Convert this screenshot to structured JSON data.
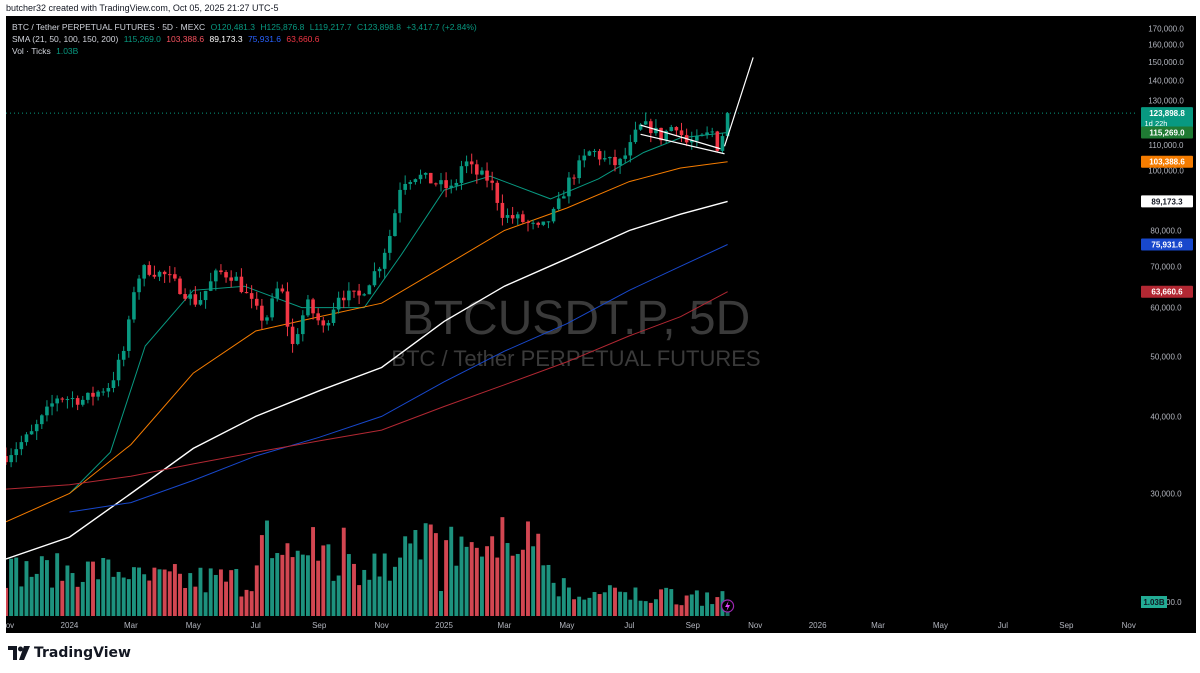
{
  "header": {
    "text": "butcher32 created with TradingView.com, Oct 05, 2025 21:27 UTC-5"
  },
  "legend": {
    "symbol": "BTC / Tether PERPETUAL FUTURES · 5D · MEXC",
    "open": "O120,481.3",
    "high": "H125,876.8",
    "low": "L119,217.7",
    "close": "C123,898.8",
    "change": "+3,417.7 (+2.84%)",
    "sma_label": "SMA (21, 50, 100, 150, 200)",
    "sma_values": [
      "115,269.0",
      "103,388.6",
      "89,173.3",
      "75,931.6",
      "63,660.6"
    ],
    "vol_label": "Vol · Ticks",
    "vol_value": "1.03B"
  },
  "watermark": {
    "symbol": "BTCUSDT.P, 5D",
    "description": "BTC / Tether PERPETUAL FUTURES"
  },
  "footer": {
    "brand": "TradingView",
    "logo_icon": "tradingview-logo-icon"
  },
  "colors": {
    "up": "#089981",
    "down": "#f23645",
    "sma21": "#089981",
    "sma50": "#f57c00",
    "sma100": "#ffffff",
    "sma150": "#1848cc",
    "sma200": "#b22833",
    "volume_up": "#22ab94",
    "volume_down": "#f7525f",
    "volume_last": "#1b7f6e"
  },
  "chart_data": {
    "type": "candlestick",
    "symbol": "BTC / Tether PERPETUAL FUTURES",
    "interval": "5D",
    "exchange": "MEXC",
    "y_scale": "log",
    "ylim": [
      19000,
      178000
    ],
    "y_ticks": [
      170000,
      160000,
      150000,
      140000,
      130000,
      120000,
      110000,
      100000,
      90000,
      80000,
      70000,
      60000,
      50000,
      40000,
      30000,
      20000
    ],
    "y_tick_labels": [
      "170,000.0",
      "160,000.0",
      "150,000.0",
      "140,000.0",
      "130,000.0",
      "120,000.0",
      "110,000.0",
      "100,000.0",
      "90,000.0",
      "80,000.0",
      "70,000.0",
      "60,000.0",
      "50,000.0",
      "40,000.0",
      "30,000.0",
      "20,000.0"
    ],
    "x_start": "2023-10-31",
    "x_end": "2026-11-10",
    "x_ticks": [
      {
        "date": "2023-11-01",
        "label": "Nov"
      },
      {
        "date": "2024-01-01",
        "label": "2024"
      },
      {
        "date": "2024-03-01",
        "label": "Mar"
      },
      {
        "date": "2024-05-01",
        "label": "May"
      },
      {
        "date": "2024-07-01",
        "label": "Jul"
      },
      {
        "date": "2024-09-01",
        "label": "Sep"
      },
      {
        "date": "2024-11-01",
        "label": "Nov"
      },
      {
        "date": "2025-01-01",
        "label": "2025"
      },
      {
        "date": "2025-03-01",
        "label": "Mar"
      },
      {
        "date": "2025-05-01",
        "label": "May"
      },
      {
        "date": "2025-07-01",
        "label": "Jul"
      },
      {
        "date": "2025-09-01",
        "label": "Sep"
      },
      {
        "date": "2025-11-01",
        "label": "Nov"
      },
      {
        "date": "2026-01-01",
        "label": "2026"
      },
      {
        "date": "2026-03-01",
        "label": "Mar"
      },
      {
        "date": "2026-05-01",
        "label": "May"
      },
      {
        "date": "2026-07-01",
        "label": "Jul"
      },
      {
        "date": "2026-09-01",
        "label": "Sep"
      },
      {
        "date": "2026-11-01",
        "label": "Nov"
      }
    ],
    "close_line_value": 123898.8,
    "price_labels": [
      {
        "name": "last-price",
        "value": 123898.8,
        "text": "123,898.8",
        "sub": "1d 22h",
        "bg": "#089981",
        "fg": "#ffffff"
      },
      {
        "name": "sma21",
        "value": 115269.0,
        "text": "115,269.0",
        "bg": "#1f7a33",
        "fg": "#ffffff"
      },
      {
        "name": "sma50",
        "value": 103388.6,
        "text": "103,388.6",
        "bg": "#f57c00",
        "fg": "#ffffff"
      },
      {
        "name": "sma100",
        "value": 89173.3,
        "text": "89,173.3",
        "bg": "#ffffff",
        "fg": "#131722"
      },
      {
        "name": "sma150",
        "value": 75931.6,
        "text": "75,931.6",
        "bg": "#1848cc",
        "fg": "#ffffff"
      },
      {
        "name": "sma200",
        "value": 63660.6,
        "text": "63,660.6",
        "bg": "#b22833",
        "fg": "#ffffff"
      }
    ],
    "volume_label": {
      "text": "1.03B",
      "bg": "#22ab94",
      "fg": "#131722"
    },
    "candle_anchors": [
      [
        "2023-10-31",
        34500
      ],
      [
        "2023-11-25",
        37500
      ],
      [
        "2023-12-20",
        43000
      ],
      [
        "2024-01-15",
        42500
      ],
      [
        "2024-02-10",
        45000
      ],
      [
        "2024-02-25",
        52000
      ],
      [
        "2024-03-05",
        66000
      ],
      [
        "2024-03-15",
        69500
      ],
      [
        "2024-04-05",
        67500
      ],
      [
        "2024-04-25",
        63000
      ],
      [
        "2024-05-05",
        61000
      ],
      [
        "2024-05-25",
        68500
      ],
      [
        "2024-06-10",
        67500
      ],
      [
        "2024-07-01",
        59500
      ],
      [
        "2024-07-10",
        57000
      ],
      [
        "2024-07-25",
        66000
      ],
      [
        "2024-08-05",
        51500
      ],
      [
        "2024-08-20",
        61000
      ],
      [
        "2024-09-05",
        55500
      ],
      [
        "2024-09-20",
        63000
      ],
      [
        "2024-10-10",
        62500
      ],
      [
        "2024-10-30",
        70500
      ],
      [
        "2024-11-10",
        79500
      ],
      [
        "2024-11-20",
        96000
      ],
      [
        "2024-12-05",
        98500
      ],
      [
        "2024-12-20",
        96000
      ],
      [
        "2025-01-10",
        93000
      ],
      [
        "2025-01-20",
        104000
      ],
      [
        "2025-02-01",
        99000
      ],
      [
        "2025-02-15",
        96500
      ],
      [
        "2025-02-28",
        84500
      ],
      [
        "2025-03-15",
        83500
      ],
      [
        "2025-04-05",
        80000
      ],
      [
        "2025-04-20",
        86000
      ],
      [
        "2025-05-01",
        95000
      ],
      [
        "2025-05-15",
        103000
      ],
      [
        "2025-05-25",
        108000
      ],
      [
        "2025-06-05",
        104500
      ],
      [
        "2025-06-20",
        102000
      ],
      [
        "2025-06-30",
        107500
      ],
      [
        "2025-07-10",
        117500
      ],
      [
        "2025-07-20",
        118000
      ],
      [
        "2025-08-01",
        113500
      ],
      [
        "2025-08-15",
        119500
      ],
      [
        "2025-08-25",
        111000
      ],
      [
        "2025-09-05",
        111500
      ],
      [
        "2025-09-20",
        115500
      ],
      [
        "2025-09-25",
        109500
      ],
      [
        "2025-09-30",
        114500
      ],
      [
        "2025-10-05",
        123898.8
      ]
    ],
    "sma_series": [
      {
        "name": "SMA 21",
        "color": "#089981",
        "points": [
          [
            "2024-01-01",
            30000
          ],
          [
            "2024-02-10",
            35000
          ],
          [
            "2024-03-15",
            52000
          ],
          [
            "2024-05-01",
            64000
          ],
          [
            "2024-06-20",
            65000
          ],
          [
            "2024-08-15",
            60000
          ],
          [
            "2024-10-15",
            60000
          ],
          [
            "2024-11-20",
            73000
          ],
          [
            "2025-01-01",
            93000
          ],
          [
            "2025-02-15",
            98000
          ],
          [
            "2025-04-15",
            90000
          ],
          [
            "2025-06-01",
            97000
          ],
          [
            "2025-07-15",
            107000
          ],
          [
            "2025-08-20",
            113000
          ],
          [
            "2025-10-05",
            115269
          ]
        ]
      },
      {
        "name": "SMA 50",
        "color": "#f57c00",
        "points": [
          [
            "2023-10-31",
            27000
          ],
          [
            "2024-01-01",
            30000
          ],
          [
            "2024-03-01",
            36000
          ],
          [
            "2024-05-01",
            47000
          ],
          [
            "2024-07-01",
            55000
          ],
          [
            "2024-09-01",
            58000
          ],
          [
            "2024-11-01",
            61000
          ],
          [
            "2025-01-01",
            70000
          ],
          [
            "2025-03-01",
            80000
          ],
          [
            "2025-05-01",
            87000
          ],
          [
            "2025-07-01",
            96000
          ],
          [
            "2025-08-20",
            101000
          ],
          [
            "2025-10-05",
            103388.6
          ]
        ]
      },
      {
        "name": "SMA 100",
        "color": "#ffffff",
        "points": [
          [
            "2023-10-31",
            23500
          ],
          [
            "2024-01-01",
            25500
          ],
          [
            "2024-03-01",
            30000
          ],
          [
            "2024-05-01",
            35500
          ],
          [
            "2024-07-01",
            40000
          ],
          [
            "2024-09-01",
            44000
          ],
          [
            "2024-11-01",
            48000
          ],
          [
            "2025-01-01",
            57000
          ],
          [
            "2025-03-01",
            65000
          ],
          [
            "2025-05-01",
            72000
          ],
          [
            "2025-07-01",
            80000
          ],
          [
            "2025-08-20",
            85000
          ],
          [
            "2025-10-05",
            89173.3
          ]
        ]
      },
      {
        "name": "SMA 150",
        "color": "#1848cc",
        "points": [
          [
            "2024-01-01",
            28000
          ],
          [
            "2024-03-01",
            29000
          ],
          [
            "2024-05-01",
            31500
          ],
          [
            "2024-07-01",
            34500
          ],
          [
            "2024-09-01",
            37000
          ],
          [
            "2024-11-01",
            40000
          ],
          [
            "2025-01-01",
            45500
          ],
          [
            "2025-03-01",
            51000
          ],
          [
            "2025-05-01",
            56500
          ],
          [
            "2025-07-01",
            64000
          ],
          [
            "2025-08-20",
            70000
          ],
          [
            "2025-10-05",
            75931.6
          ]
        ]
      },
      {
        "name": "SMA 200",
        "color": "#b22833",
        "points": [
          [
            "2023-10-31",
            30500
          ],
          [
            "2024-01-01",
            31000
          ],
          [
            "2024-03-01",
            32000
          ],
          [
            "2024-05-01",
            33500
          ],
          [
            "2024-07-01",
            35000
          ],
          [
            "2024-09-01",
            36500
          ],
          [
            "2024-11-01",
            38000
          ],
          [
            "2025-01-01",
            41500
          ],
          [
            "2025-03-01",
            45000
          ],
          [
            "2025-05-01",
            49000
          ],
          [
            "2025-07-01",
            54000
          ],
          [
            "2025-08-20",
            58000
          ],
          [
            "2025-10-05",
            63660.6
          ]
        ]
      }
    ],
    "drawings": [
      {
        "name": "bull-flag-top-line",
        "color": "#ffffff",
        "points": [
          [
            "2025-07-12",
            118500
          ],
          [
            "2025-09-28",
            108500
          ]
        ]
      },
      {
        "name": "bull-flag-bottom-line",
        "color": "#ffffff",
        "points": [
          [
            "2025-07-12",
            114500
          ],
          [
            "2025-10-02",
            106500
          ]
        ]
      },
      {
        "name": "projection-line",
        "color": "#ffffff",
        "points": [
          [
            "2025-10-02",
            109500
          ],
          [
            "2025-10-30",
            152500
          ]
        ]
      }
    ]
  }
}
